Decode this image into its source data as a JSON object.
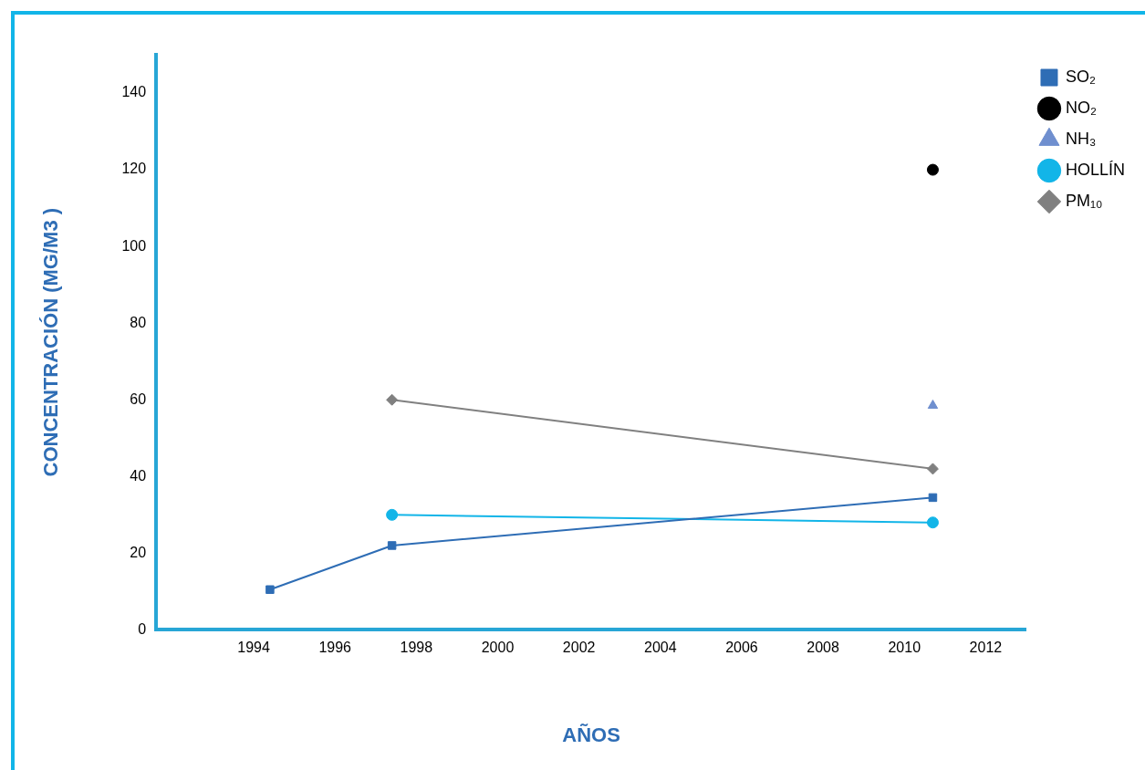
{
  "chart_data": {
    "type": "line",
    "xlabel": "AÑOS",
    "ylabel": "CONCENTRACIÓN (MG/M3 )",
    "xlim": [
      1991.6,
      2013
    ],
    "xticks": [
      1994,
      1996,
      1998,
      2000,
      2002,
      2004,
      2006,
      2008,
      2010,
      2012
    ],
    "ylim": [
      0,
      150
    ],
    "yticks": [
      0,
      20,
      40,
      60,
      80,
      100,
      120,
      140
    ],
    "grid": false,
    "legend": "top right",
    "series": [
      {
        "name": "SO₂",
        "color": "#2e6db5",
        "marker": "square",
        "x": [
          1994.4,
          1997.4,
          2010.7
        ],
        "values": [
          10.5,
          22,
          34.5
        ]
      },
      {
        "name": "NO₂",
        "color": "#000000",
        "marker": "circle",
        "x": [
          2010.7
        ],
        "values": [
          120
        ]
      },
      {
        "name": "NH₃",
        "color": "#6f8fcf",
        "marker": "triangle",
        "x": [
          2010.7
        ],
        "values": [
          58.5
        ]
      },
      {
        "name": "HOLLÍN",
        "color": "#12b5e8",
        "marker": "circle",
        "x": [
          1997.4,
          2010.7
        ],
        "values": [
          30,
          28
        ]
      },
      {
        "name": "PM₁₀",
        "color": "#808080",
        "marker": "diamond",
        "x": [
          1997.4,
          2010.7
        ],
        "values": [
          60,
          42
        ]
      }
    ]
  }
}
